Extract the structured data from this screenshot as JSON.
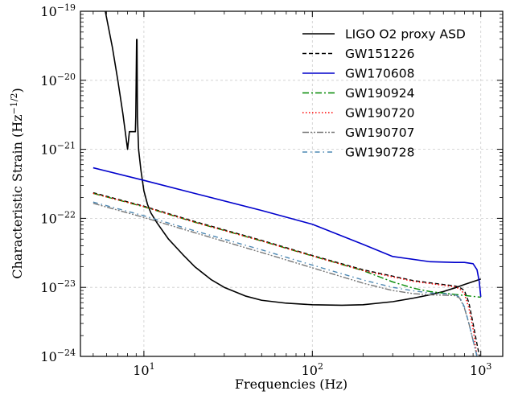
{
  "chart_data": {
    "type": "line",
    "xlabel": "Frequencies (Hz)",
    "ylabel": "Characteristic Strain (Hz",
    "ylabel_exponent": "−1/2",
    "ylabel_close": ")",
    "xscale": "log",
    "yscale": "log",
    "xlim": [
      4.2,
      1350
    ],
    "ylim": [
      1e-24,
      1e-19
    ],
    "grid": true,
    "legend_position": "top-right",
    "x_major_ticks": [
      {
        "value": 10,
        "base": "10",
        "exp": "1"
      },
      {
        "value": 100,
        "base": "10",
        "exp": "2"
      },
      {
        "value": 1000,
        "base": "10",
        "exp": "3"
      }
    ],
    "y_major_ticks": [
      {
        "value": 1e-24,
        "base": "10",
        "exp": "−24"
      },
      {
        "value": 1e-23,
        "base": "10",
        "exp": "−23"
      },
      {
        "value": 1e-22,
        "base": "10",
        "exp": "−22"
      },
      {
        "value": 1e-21,
        "base": "10",
        "exp": "−21"
      },
      {
        "value": 1e-20,
        "base": "10",
        "exp": "−20"
      },
      {
        "value": 1e-19,
        "base": "10",
        "exp": "−19"
      }
    ],
    "series": [
      {
        "name": "LIGO O2 proxy ASD",
        "color": "#000000",
        "dash": "",
        "width": 1.6,
        "x": [
          5.9,
          6.5,
          7.0,
          7.5,
          8.0,
          8.2,
          8.9,
          8.95,
          9.05,
          9.1,
          9.15,
          9.3,
          9.6,
          10.0,
          10.5,
          11.0,
          12,
          14,
          17,
          20,
          25,
          30,
          40,
          50,
          70,
          100,
          150,
          200,
          300,
          400,
          500,
          600,
          700,
          800,
          1000
        ],
        "y": [
          1e-19,
          3e-20,
          1e-20,
          3.3e-21,
          1e-21,
          1.8e-21,
          1.8e-21,
          3e-21,
          3.9e-20,
          3.9e-20,
          3e-21,
          1e-21,
          5e-22,
          2.5e-22,
          1.6e-22,
          1.2e-22,
          8.5e-23,
          5e-23,
          3e-23,
          2e-23,
          1.3e-23,
          1e-23,
          7.5e-24,
          6.5e-24,
          5.9e-24,
          5.6e-24,
          5.5e-24,
          5.6e-24,
          6.2e-24,
          7e-24,
          7.8e-24,
          8.7e-24,
          9.8e-24,
          1.1e-23,
          1.32e-23
        ]
      },
      {
        "name": "GW151226",
        "color": "#000000",
        "dash": "5,3",
        "width": 1.4,
        "x": [
          5,
          10,
          20,
          50,
          100,
          200,
          400,
          600,
          700,
          750,
          800,
          850,
          900,
          950,
          1000
        ],
        "y": [
          2.35e-22,
          1.5e-22,
          9e-23,
          4.8e-23,
          2.9e-23,
          1.8e-23,
          1.25e-23,
          1.1e-23,
          1.05e-23,
          1e-23,
          9e-24,
          6e-24,
          3e-24,
          1.5e-24,
          8e-25
        ]
      },
      {
        "name": "GW170608",
        "color": "#0000cc",
        "dash": "",
        "width": 1.6,
        "x": [
          5,
          10,
          20,
          50,
          100,
          200,
          300,
          500,
          700,
          800,
          900,
          950,
          980,
          1000
        ],
        "y": [
          5.4e-22,
          3.55e-22,
          2.3e-22,
          1.3e-22,
          8.2e-23,
          4.2e-23,
          2.8e-23,
          2.35e-23,
          2.3e-23,
          2.3e-23,
          2.2e-23,
          1.8e-23,
          1.2e-23,
          7.3e-24
        ]
      },
      {
        "name": "GW190924",
        "color": "#008800",
        "dash": "8,3,2,3",
        "width": 1.4,
        "x": [
          5,
          10,
          20,
          50,
          100,
          200,
          300,
          400,
          500,
          700,
          1000
        ],
        "y": [
          2.3e-22,
          1.47e-22,
          8.8e-23,
          4.7e-23,
          2.85e-23,
          1.75e-23,
          1.2e-23,
          9.7e-24,
          8.7e-24,
          7.9e-24,
          7.2e-24
        ]
      },
      {
        "name": "GW190720",
        "color": "#ff0000",
        "dash": "1.5,2.5",
        "width": 1.4,
        "x": [
          5,
          10,
          20,
          50,
          100,
          200,
          400,
          600,
          700,
          750,
          800,
          850,
          900,
          950
        ],
        "y": [
          2.3e-22,
          1.48e-22,
          8.8e-23,
          4.7e-23,
          2.85e-23,
          1.75e-23,
          1.22e-23,
          1.07e-23,
          1.02e-23,
          9.5e-24,
          8e-24,
          5e-24,
          2.5e-24,
          1e-24
        ]
      },
      {
        "name": "GW190707",
        "color": "#777777",
        "dash": "8,2,2,2,2,2",
        "width": 1.4,
        "x": [
          5,
          10,
          20,
          50,
          100,
          200,
          300,
          400,
          500,
          600,
          700,
          750,
          800,
          850,
          900,
          950
        ],
        "y": [
          1.65e-22,
          1.03e-22,
          6.2e-23,
          3.2e-23,
          1.92e-23,
          1.15e-23,
          9e-24,
          8.1e-24,
          7.8e-24,
          7.7e-24,
          7.6e-24,
          7e-24,
          5e-24,
          3e-24,
          1.7e-24,
          1e-24
        ]
      },
      {
        "name": "GW190728",
        "color": "#4d88b3",
        "dash": "6,4,1.5,4",
        "width": 1.4,
        "x": [
          5,
          10,
          20,
          50,
          100,
          200,
          300,
          400,
          500,
          600,
          700,
          750,
          800,
          850,
          900,
          950
        ],
        "y": [
          1.72e-22,
          1.09e-22,
          6.6e-23,
          3.5e-23,
          2.1e-23,
          1.28e-23,
          1e-23,
          8.9e-24,
          8.3e-24,
          8.1e-24,
          7.9e-24,
          7.2e-24,
          5.2e-24,
          3e-24,
          1.7e-24,
          1e-24
        ]
      }
    ]
  }
}
